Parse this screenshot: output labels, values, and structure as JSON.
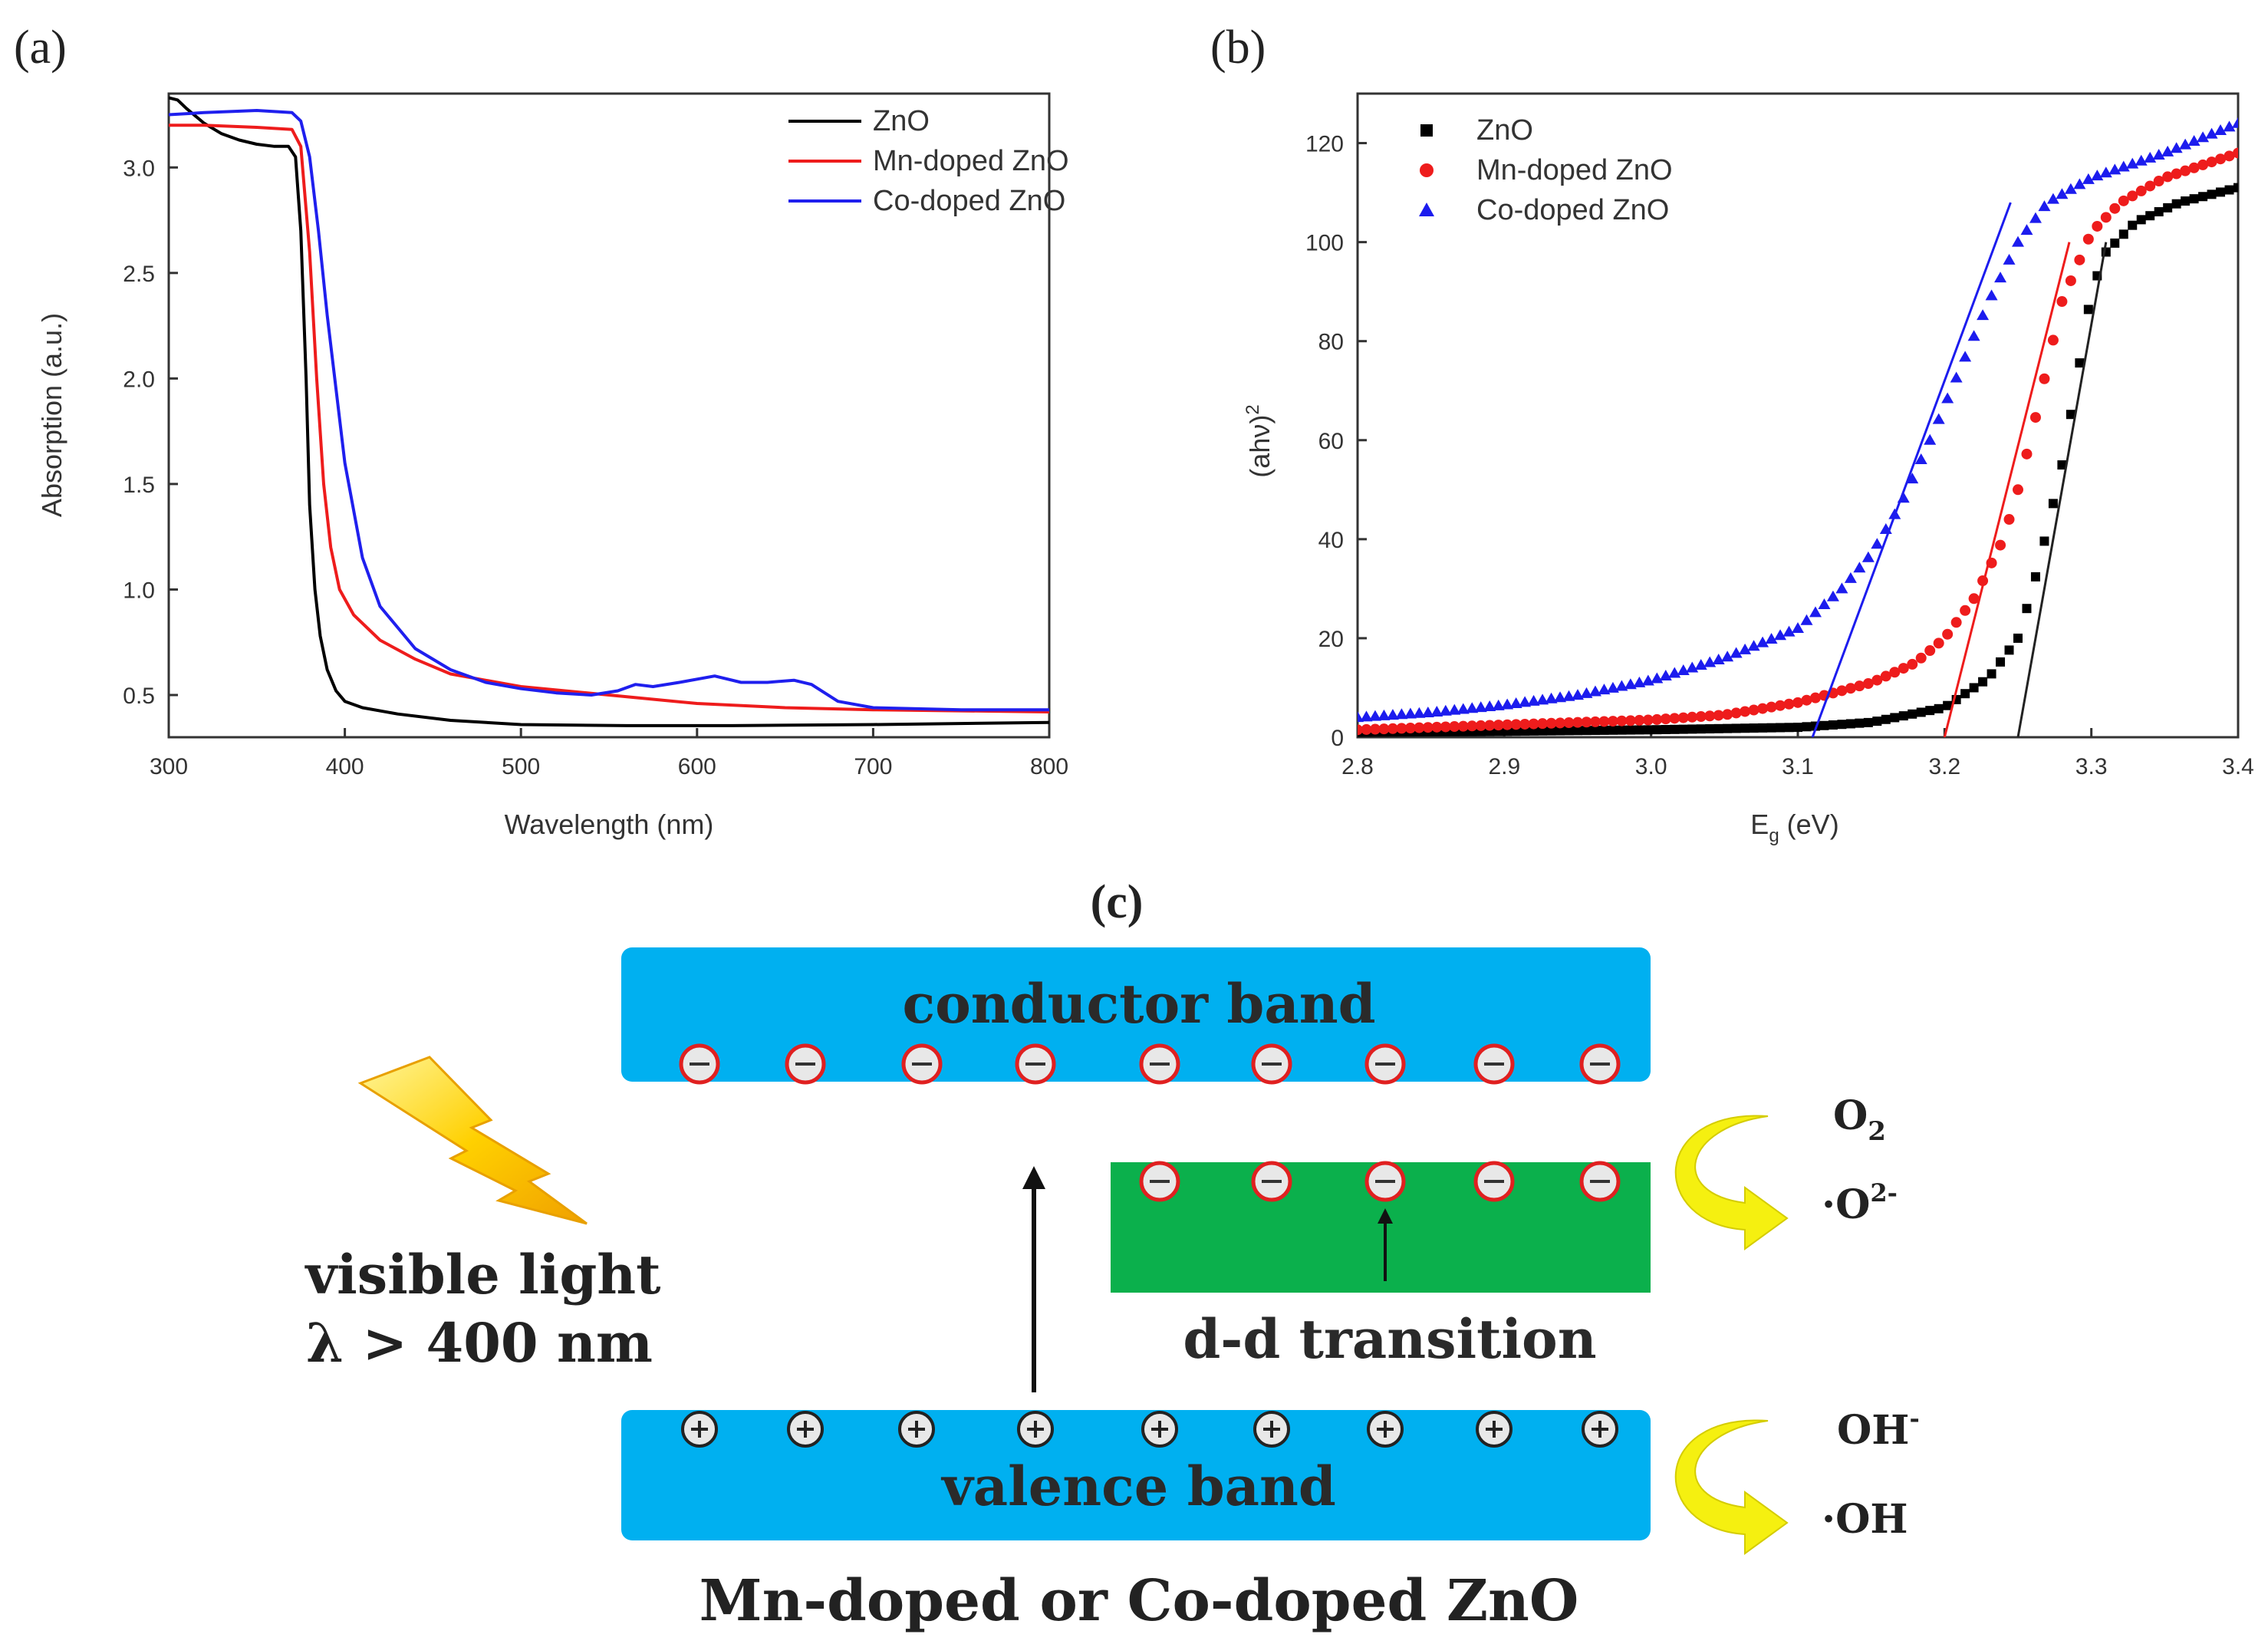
{
  "panels": {
    "a": "(a)",
    "b": "(b)",
    "c": "(c)"
  },
  "chart_data": [
    {
      "type": "line",
      "xlabel": "Wavelength (nm)",
      "ylabel": "Absorption (a.u.)",
      "xlim": [
        300,
        800
      ],
      "ylim": [
        0.3,
        3.35
      ],
      "xticks": [
        300,
        400,
        500,
        600,
        700,
        800
      ],
      "yticks": [
        0.5,
        1.0,
        1.5,
        2.0,
        2.5,
        3.0
      ],
      "xtick_labels": [
        "300",
        "400",
        "500",
        "600",
        "700",
        "800"
      ],
      "ytick_labels": [
        "0.5",
        "1.0",
        "1.5",
        "2.0",
        "2.5",
        "3.0"
      ],
      "legend": "top-right",
      "series": [
        {
          "name": "ZnO",
          "color": "#000000",
          "points": [
            [
              300,
              3.33
            ],
            [
              305,
              3.32
            ],
            [
              310,
              3.28
            ],
            [
              320,
              3.21
            ],
            [
              330,
              3.16
            ],
            [
              340,
              3.13
            ],
            [
              350,
              3.11
            ],
            [
              360,
              3.1
            ],
            [
              368,
              3.1
            ],
            [
              372,
              3.05
            ],
            [
              375,
              2.7
            ],
            [
              378,
              2.0
            ],
            [
              380,
              1.4
            ],
            [
              383,
              1.0
            ],
            [
              386,
              0.78
            ],
            [
              390,
              0.62
            ],
            [
              395,
              0.52
            ],
            [
              400,
              0.47
            ],
            [
              410,
              0.44
            ],
            [
              430,
              0.41
            ],
            [
              460,
              0.38
            ],
            [
              500,
              0.36
            ],
            [
              560,
              0.355
            ],
            [
              620,
              0.355
            ],
            [
              700,
              0.36
            ],
            [
              800,
              0.37
            ]
          ]
        },
        {
          "name": "Mn-doped ZnO",
          "color": "#ee1c1c",
          "points": [
            [
              300,
              3.2
            ],
            [
              320,
              3.2
            ],
            [
              350,
              3.19
            ],
            [
              370,
              3.18
            ],
            [
              375,
              3.1
            ],
            [
              380,
              2.6
            ],
            [
              384,
              2.0
            ],
            [
              388,
              1.5
            ],
            [
              392,
              1.2
            ],
            [
              397,
              1.0
            ],
            [
              405,
              0.88
            ],
            [
              420,
              0.76
            ],
            [
              440,
              0.67
            ],
            [
              460,
              0.6
            ],
            [
              500,
              0.54
            ],
            [
              550,
              0.5
            ],
            [
              600,
              0.46
            ],
            [
              650,
              0.44
            ],
            [
              700,
              0.43
            ],
            [
              800,
              0.42
            ]
          ]
        },
        {
          "name": "Co-doped ZnO",
          "color": "#1f1fee",
          "points": [
            [
              300,
              3.25
            ],
            [
              320,
              3.26
            ],
            [
              350,
              3.27
            ],
            [
              370,
              3.26
            ],
            [
              375,
              3.22
            ],
            [
              380,
              3.05
            ],
            [
              385,
              2.7
            ],
            [
              390,
              2.3
            ],
            [
              395,
              1.95
            ],
            [
              400,
              1.6
            ],
            [
              410,
              1.15
            ],
            [
              420,
              0.92
            ],
            [
              440,
              0.72
            ],
            [
              460,
              0.62
            ],
            [
              480,
              0.56
            ],
            [
              500,
              0.53
            ],
            [
              520,
              0.51
            ],
            [
              540,
              0.5
            ],
            [
              555,
              0.52
            ],
            [
              565,
              0.55
            ],
            [
              575,
              0.54
            ],
            [
              590,
              0.56
            ],
            [
              610,
              0.59
            ],
            [
              625,
              0.56
            ],
            [
              640,
              0.56
            ],
            [
              655,
              0.57
            ],
            [
              665,
              0.55
            ],
            [
              680,
              0.47
            ],
            [
              700,
              0.44
            ],
            [
              750,
              0.43
            ],
            [
              800,
              0.43
            ]
          ]
        }
      ]
    },
    {
      "type": "scatter",
      "xlabel_main": "E",
      "xlabel_sub": "g",
      "xlabel_rest": " (eV)",
      "ylabel_main": "(ahν)",
      "ylabel_sup": "2",
      "xlim": [
        2.8,
        3.4
      ],
      "ylim": [
        0,
        130
      ],
      "xticks": [
        2.8,
        2.9,
        3.0,
        3.1,
        3.2,
        3.3,
        3.4
      ],
      "yticks": [
        0,
        20,
        40,
        60,
        80,
        100,
        120
      ],
      "xtick_labels": [
        "2.8",
        "2.9",
        "3.0",
        "3.1",
        "3.2",
        "3.3",
        "3.4"
      ],
      "ytick_labels": [
        "0",
        "20",
        "40",
        "60",
        "80",
        "100",
        "120"
      ],
      "legend": "top-left",
      "series": [
        {
          "name": "ZnO",
          "color": "#000000",
          "marker": "square",
          "points": [
            [
              2.8,
              1.0
            ],
            [
              2.9,
              1.2
            ],
            [
              3.0,
              1.5
            ],
            [
              3.1,
              2.0
            ],
            [
              3.15,
              3.0
            ],
            [
              3.2,
              6.0
            ],
            [
              3.23,
              12
            ],
            [
              3.25,
              20
            ],
            [
              3.26,
              30
            ],
            [
              3.27,
              42
            ],
            [
              3.28,
              55
            ],
            [
              3.29,
              72
            ],
            [
              3.3,
              90
            ],
            [
              3.31,
              98
            ],
            [
              3.33,
              104
            ],
            [
              3.36,
              108
            ],
            [
              3.4,
              111
            ]
          ]
        },
        {
          "name": "Mn-doped ZnO",
          "color": "#ee1c1c",
          "marker": "circle",
          "points": [
            [
              2.8,
              1.5
            ],
            [
              2.9,
              2.5
            ],
            [
              3.0,
              3.5
            ],
            [
              3.05,
              4.5
            ],
            [
              3.1,
              7
            ],
            [
              3.15,
              11
            ],
            [
              3.18,
              15
            ],
            [
              3.2,
              20
            ],
            [
              3.22,
              28
            ],
            [
              3.24,
              40
            ],
            [
              3.25,
              50
            ],
            [
              3.26,
              62
            ],
            [
              3.27,
              75
            ],
            [
              3.28,
              88
            ],
            [
              3.3,
              102
            ],
            [
              3.32,
              108
            ],
            [
              3.35,
              113
            ],
            [
              3.4,
              118
            ]
          ]
        },
        {
          "name": "Co-doped ZnO",
          "color": "#1c1cee",
          "marker": "triangle",
          "points": [
            [
              2.8,
              4
            ],
            [
              2.85,
              5
            ],
            [
              2.9,
              6.5
            ],
            [
              2.95,
              8.5
            ],
            [
              3.0,
              11.5
            ],
            [
              3.05,
              16
            ],
            [
              3.1,
              22
            ],
            [
              3.13,
              30
            ],
            [
              3.15,
              37
            ],
            [
              3.17,
              47
            ],
            [
              3.19,
              60
            ],
            [
              3.21,
              74
            ],
            [
              3.23,
              88
            ],
            [
              3.25,
              100
            ],
            [
              3.27,
              108
            ],
            [
              3.3,
              113
            ],
            [
              3.35,
              118
            ],
            [
              3.4,
              124
            ]
          ]
        }
      ],
      "fit_lines": [
        {
          "color": "#222222",
          "points": [
            [
              3.25,
              0
            ],
            [
              3.31,
              100
            ]
          ]
        },
        {
          "color": "#ee1c1c",
          "points": [
            [
              3.2,
              0
            ],
            [
              3.285,
              100
            ]
          ]
        },
        {
          "color": "#1c1cee",
          "points": [
            [
              3.11,
              0
            ],
            [
              3.245,
              108
            ]
          ]
        }
      ]
    }
  ],
  "diagram": {
    "conductor_band": "conductor band",
    "valence_band": "valence band",
    "dd_transition": "d-d transition",
    "visible_light_1": "visible light",
    "visible_light_2": "λ > 400 nm",
    "caption": "Mn-doped or Co-doped ZnO",
    "o2": "O",
    "o2_sub": "2",
    "o2_minus": "·O",
    "o2_minus_sup": "2-",
    "oh_minus": "OH",
    "oh_minus_sup": "-",
    "oh_radical": "·OH",
    "colors": {
      "band_blue": "#00b0f0",
      "band_green": "#0bb04c",
      "arrow_yellow": "#f5f010"
    },
    "electron_count_conductor": 9,
    "electron_count_dd": 5,
    "hole_count_valence": 9
  }
}
